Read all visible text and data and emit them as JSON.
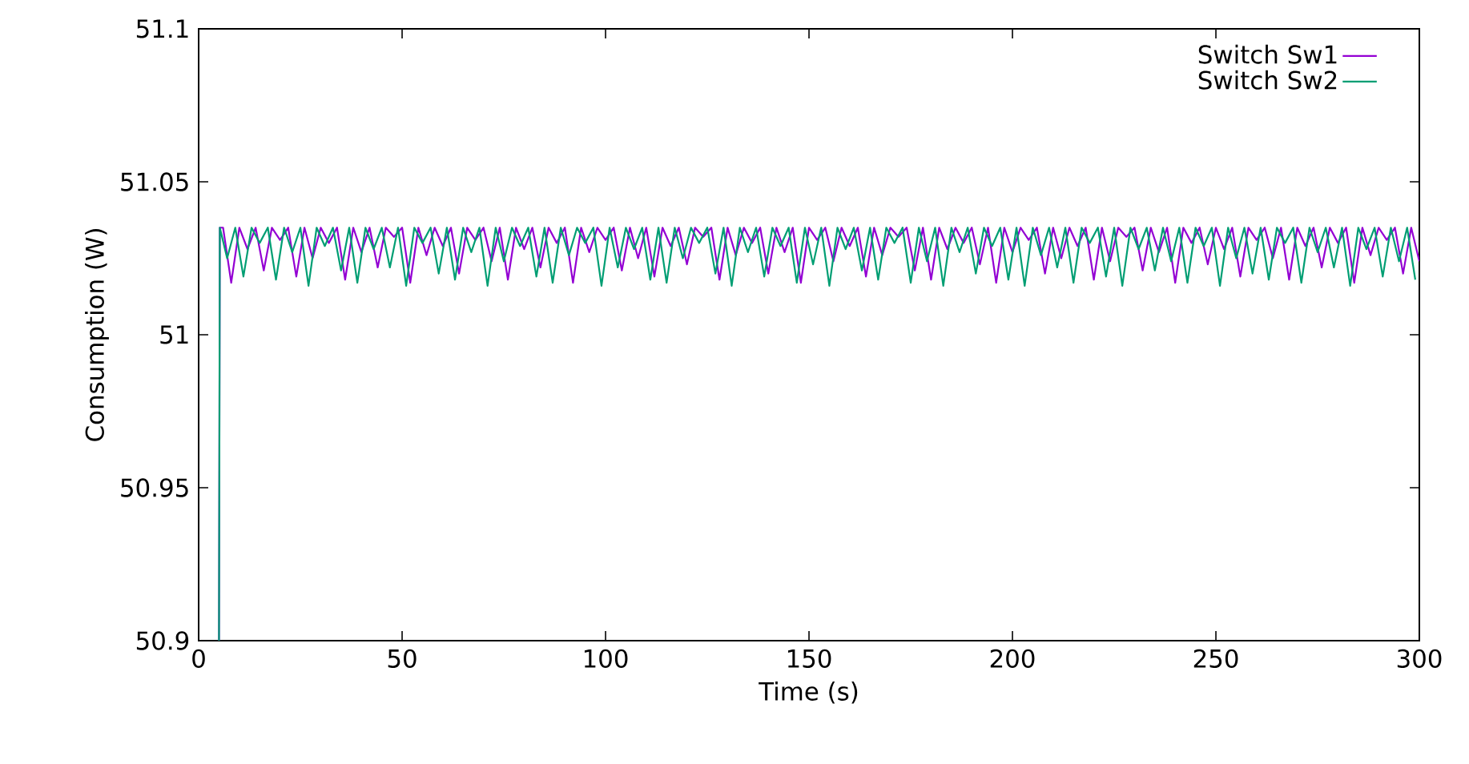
{
  "chart_data": {
    "type": "line",
    "xlabel": "Time (s)",
    "ylabel": "Consumption (W)",
    "xlim": [
      0,
      300
    ],
    "ylim": [
      50.9,
      51.1
    ],
    "xticks": [
      0,
      50,
      100,
      150,
      200,
      250,
      300
    ],
    "yticks": [
      50.9,
      50.95,
      51,
      51.05,
      51.1
    ],
    "legend": "top right",
    "series": [
      {
        "name": "Switch Sw1",
        "color": "#9400d3",
        "x": [
          5,
          5.2,
          6,
          8,
          10,
          12,
          14,
          16,
          18,
          20,
          22,
          24,
          26,
          28,
          30,
          32,
          34,
          36,
          38,
          40,
          42,
          44,
          46,
          48,
          50,
          52,
          54,
          56,
          58,
          60,
          62,
          64,
          66,
          68,
          70,
          72,
          74,
          76,
          78,
          80,
          82,
          84,
          86,
          88,
          90,
          92,
          94,
          96,
          98,
          100,
          102,
          104,
          106,
          108,
          110,
          112,
          114,
          116,
          118,
          120,
          122,
          124,
          126,
          128,
          130,
          132,
          134,
          136,
          138,
          140,
          142,
          144,
          146,
          148,
          150,
          152,
          154,
          156,
          158,
          160,
          162,
          164,
          166,
          168,
          170,
          172,
          174,
          176,
          178,
          180,
          182,
          184,
          186,
          188,
          190,
          192,
          194,
          196,
          198,
          200,
          202,
          204,
          206,
          208,
          210,
          212,
          214,
          216,
          218,
          220,
          222,
          224,
          226,
          228,
          230,
          232,
          234,
          236,
          238,
          240,
          242,
          244,
          246,
          248,
          250,
          252,
          254,
          256,
          258,
          260,
          262,
          264,
          266,
          268,
          270,
          272,
          274,
          276,
          278,
          280,
          282,
          284,
          286,
          288,
          290,
          292,
          294,
          296,
          298,
          300
        ],
        "values": [
          50.9,
          51.035,
          51.035,
          51.017,
          51.035,
          51.028,
          51.035,
          51.021,
          51.035,
          51.031,
          51.035,
          51.019,
          51.035,
          51.025,
          51.035,
          51.03,
          51.035,
          51.018,
          51.035,
          51.027,
          51.035,
          51.022,
          51.035,
          51.032,
          51.035,
          51.017,
          51.035,
          51.026,
          51.035,
          51.029,
          51.035,
          51.02,
          51.035,
          51.031,
          51.035,
          51.024,
          51.035,
          51.018,
          51.035,
          51.028,
          51.035,
          51.022,
          51.035,
          51.03,
          51.035,
          51.017,
          51.035,
          51.027,
          51.035,
          51.031,
          51.035,
          51.021,
          51.035,
          51.025,
          51.035,
          51.019,
          51.035,
          51.029,
          51.035,
          51.023,
          51.035,
          51.032,
          51.035,
          51.018,
          51.035,
          51.026,
          51.035,
          51.03,
          51.035,
          51.02,
          51.035,
          51.027,
          51.035,
          51.017,
          51.035,
          51.031,
          51.035,
          51.024,
          51.035,
          51.029,
          51.035,
          51.019,
          51.035,
          51.026,
          51.035,
          51.032,
          51.035,
          51.021,
          51.035,
          51.018,
          51.035,
          51.028,
          51.035,
          51.03,
          51.035,
          51.023,
          51.035,
          51.017,
          51.035,
          51.027,
          51.035,
          51.031,
          51.035,
          51.02,
          51.035,
          51.025,
          51.035,
          51.029,
          51.035,
          51.018,
          51.035,
          51.024,
          51.035,
          51.032,
          51.035,
          51.021,
          51.035,
          51.027,
          51.035,
          51.017,
          51.035,
          51.03,
          51.035,
          51.023,
          51.035,
          51.028,
          51.035,
          51.019,
          51.035,
          51.031,
          51.035,
          51.025,
          51.035,
          51.018,
          51.035,
          51.029,
          51.035,
          51.022,
          51.035,
          51.03,
          51.035,
          51.017,
          51.035,
          51.026,
          51.035,
          51.031,
          51.035,
          51.02,
          51.035,
          51.024
        ]
      },
      {
        "name": "Switch Sw2",
        "color": "#009e73",
        "x": [
          5,
          5.2,
          7,
          9,
          11,
          13,
          15,
          17,
          19,
          21,
          23,
          25,
          27,
          29,
          31,
          33,
          35,
          37,
          39,
          41,
          43,
          45,
          47,
          49,
          51,
          53,
          55,
          57,
          59,
          61,
          63,
          65,
          67,
          69,
          71,
          73,
          75,
          77,
          79,
          81,
          83,
          85,
          87,
          89,
          91,
          93,
          95,
          97,
          99,
          101,
          103,
          105,
          107,
          109,
          111,
          113,
          115,
          117,
          119,
          121,
          123,
          125,
          127,
          129,
          131,
          133,
          135,
          137,
          139,
          141,
          143,
          145,
          147,
          149,
          151,
          153,
          155,
          157,
          159,
          161,
          163,
          165,
          167,
          169,
          171,
          173,
          175,
          177,
          179,
          181,
          183,
          185,
          187,
          189,
          191,
          193,
          195,
          197,
          199,
          201,
          203,
          205,
          207,
          209,
          211,
          213,
          215,
          217,
          219,
          221,
          223,
          225,
          227,
          229,
          231,
          233,
          235,
          237,
          239,
          241,
          243,
          245,
          247,
          249,
          251,
          253,
          255,
          257,
          259,
          261,
          263,
          265,
          267,
          269,
          271,
          273,
          275,
          277,
          279,
          281,
          283,
          285,
          287,
          289,
          291,
          293,
          295,
          297,
          299
        ],
        "values": [
          50.9,
          51.035,
          51.025,
          51.035,
          51.019,
          51.035,
          51.03,
          51.035,
          51.018,
          51.035,
          51.027,
          51.035,
          51.016,
          51.035,
          51.029,
          51.035,
          51.021,
          51.035,
          51.017,
          51.035,
          51.028,
          51.035,
          51.022,
          51.035,
          51.016,
          51.035,
          51.03,
          51.035,
          51.02,
          51.035,
          51.018,
          51.035,
          51.027,
          51.035,
          51.016,
          51.035,
          51.024,
          51.035,
          51.029,
          51.035,
          51.019,
          51.035,
          51.017,
          51.035,
          51.026,
          51.035,
          51.03,
          51.035,
          51.016,
          51.035,
          51.022,
          51.035,
          51.028,
          51.035,
          51.018,
          51.035,
          51.017,
          51.035,
          51.025,
          51.035,
          51.03,
          51.035,
          51.02,
          51.035,
          51.016,
          51.035,
          51.027,
          51.035,
          51.019,
          51.035,
          51.029,
          51.035,
          51.017,
          51.035,
          51.023,
          51.035,
          51.016,
          51.035,
          51.028,
          51.035,
          51.021,
          51.035,
          51.018,
          51.035,
          51.03,
          51.035,
          51.017,
          51.035,
          51.024,
          51.035,
          51.016,
          51.035,
          51.027,
          51.035,
          51.02,
          51.035,
          51.029,
          51.035,
          51.018,
          51.035,
          51.016,
          51.035,
          51.026,
          51.035,
          51.022,
          51.035,
          51.017,
          51.035,
          51.03,
          51.035,
          51.019,
          51.035,
          51.016,
          51.035,
          51.028,
          51.035,
          51.021,
          51.035,
          51.024,
          51.035,
          51.017,
          51.035,
          51.029,
          51.035,
          51.016,
          51.035,
          51.025,
          51.035,
          51.02,
          51.035,
          51.018,
          51.035,
          51.03,
          51.035,
          51.017,
          51.035,
          51.027,
          51.035,
          51.022,
          51.035,
          51.016,
          51.035,
          51.028,
          51.035,
          51.019,
          51.035,
          51.024,
          51.035,
          51.018
        ]
      }
    ]
  }
}
